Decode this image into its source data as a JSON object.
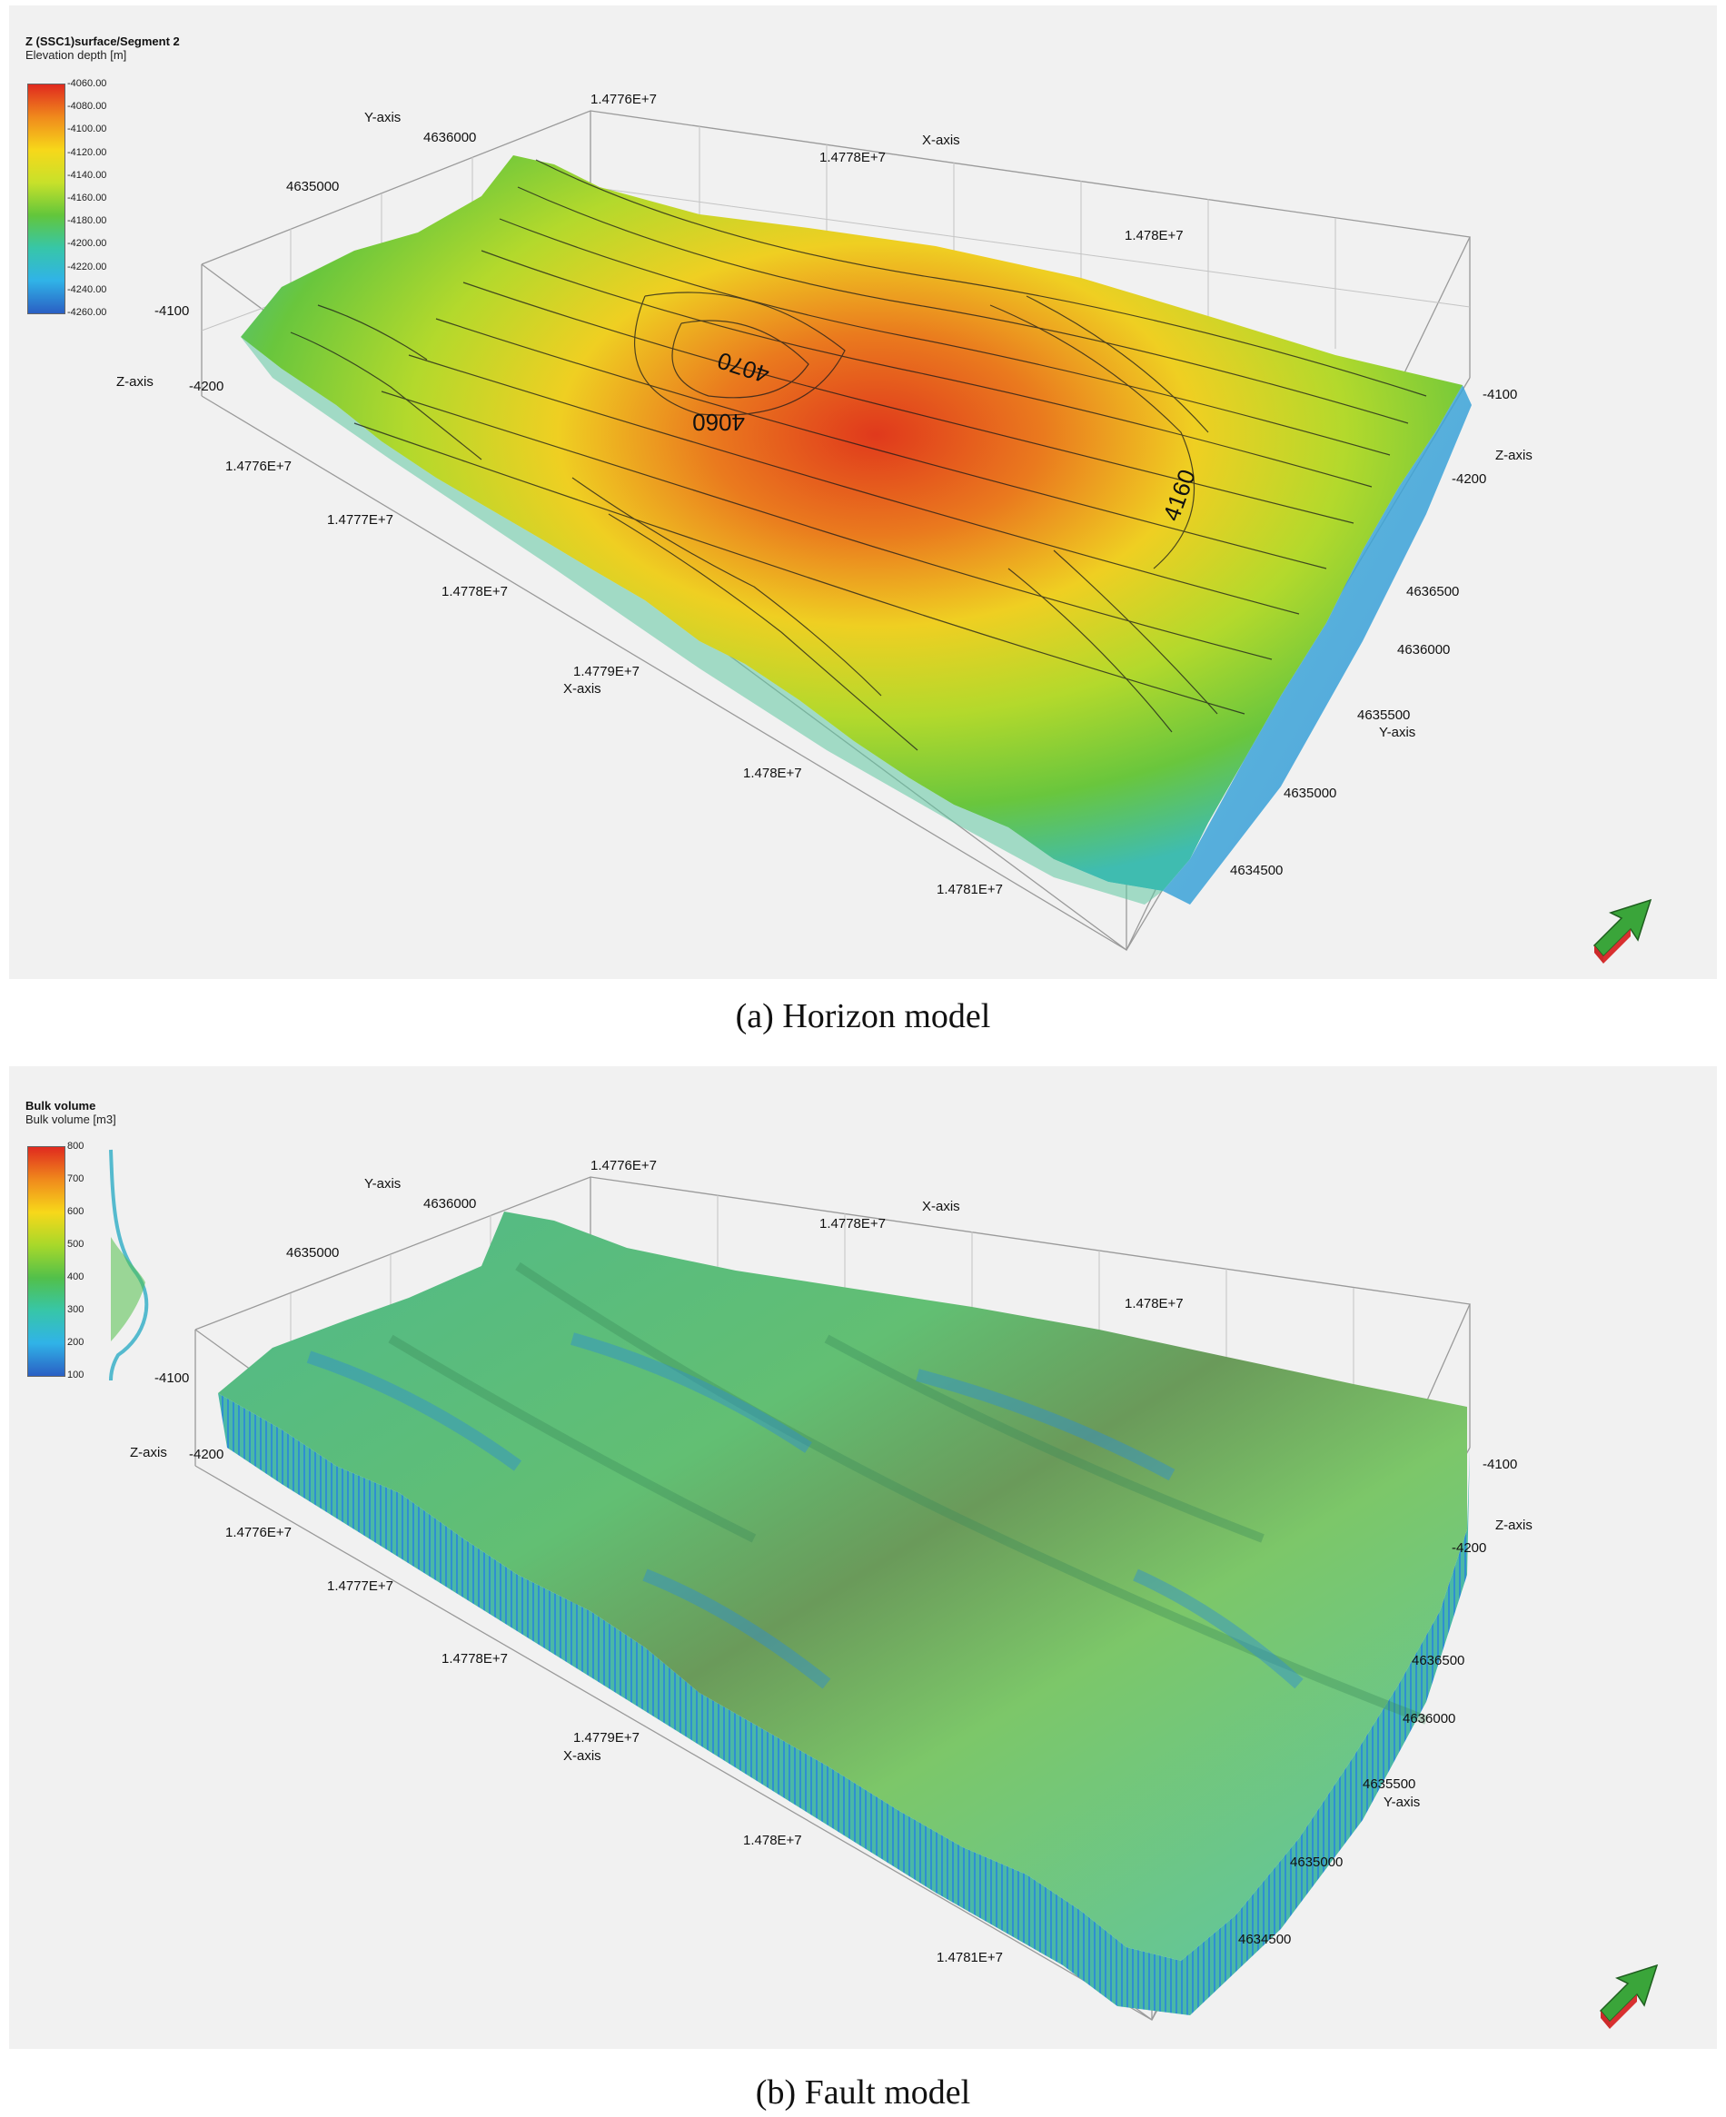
{
  "figure_a": {
    "caption": "(a) Horizon model",
    "legend": {
      "title": "Z (SSC1)surface/Segment 2",
      "subtitle": "Elevation depth [m]",
      "ticks": [
        "-4060.00",
        "-4080.00",
        "-4100.00",
        "-4120.00",
        "-4140.00",
        "-4160.00",
        "-4180.00",
        "-4200.00",
        "-4220.00",
        "-4240.00",
        "-4260.00"
      ],
      "colors": [
        "#e02a1f",
        "#f08a1c",
        "#f7d81a",
        "#c8e12a",
        "#62c63b",
        "#37c6a8",
        "#30b3e8",
        "#2a5fc4"
      ]
    },
    "axes": {
      "y_axis_label": "Y-axis",
      "x_axis_label": "X-axis",
      "z_axis_label": "Z-axis",
      "top_x_ticks": [
        "1.4776E+7",
        "1.4778E+7",
        "1.478E+7"
      ],
      "top_y_ticks": [
        "4636000",
        "4635000"
      ],
      "bottom_x_ticks": [
        "1.4776E+7",
        "1.4777E+7",
        "1.4778E+7",
        "1.4779E+7",
        "1.478E+7",
        "1.4781E+7"
      ],
      "right_y_ticks": [
        "4636500",
        "4636000",
        "4635500",
        "4635000",
        "4634500"
      ],
      "left_z_ticks": [
        "-4100",
        "-4200"
      ],
      "right_z_ticks": [
        "-4100",
        "-4200"
      ]
    },
    "contour_labels": [
      "4060",
      "4070",
      "4160"
    ]
  },
  "figure_b": {
    "caption": "(b) Fault model",
    "legend": {
      "title": "Bulk volume",
      "subtitle": "Bulk volume [m3]",
      "ticks": [
        "800",
        "700",
        "600",
        "500",
        "400",
        "300",
        "200",
        "100"
      ],
      "colors": [
        "#e02a1f",
        "#f08a1c",
        "#f7d81a",
        "#a8d82a",
        "#52c04a",
        "#37c6a8",
        "#30b3e8",
        "#2a5fc4"
      ]
    },
    "axes": {
      "y_axis_label": "Y-axis",
      "x_axis_label": "X-axis",
      "z_axis_label": "Z-axis",
      "top_x_ticks": [
        "1.4776E+7",
        "1.4778E+7",
        "1.478E+7"
      ],
      "top_y_ticks": [
        "4636000",
        "4635000"
      ],
      "bottom_x_ticks": [
        "1.4776E+7",
        "1.4777E+7",
        "1.4778E+7",
        "1.4779E+7",
        "1.478E+7",
        "1.4781E+7"
      ],
      "right_y_ticks": [
        "4636500",
        "4636000",
        "4635500",
        "4635000",
        "4634500"
      ],
      "left_z_ticks": [
        "-4100",
        "-4200"
      ],
      "right_z_ticks": [
        "-4100",
        "-4200"
      ]
    }
  }
}
